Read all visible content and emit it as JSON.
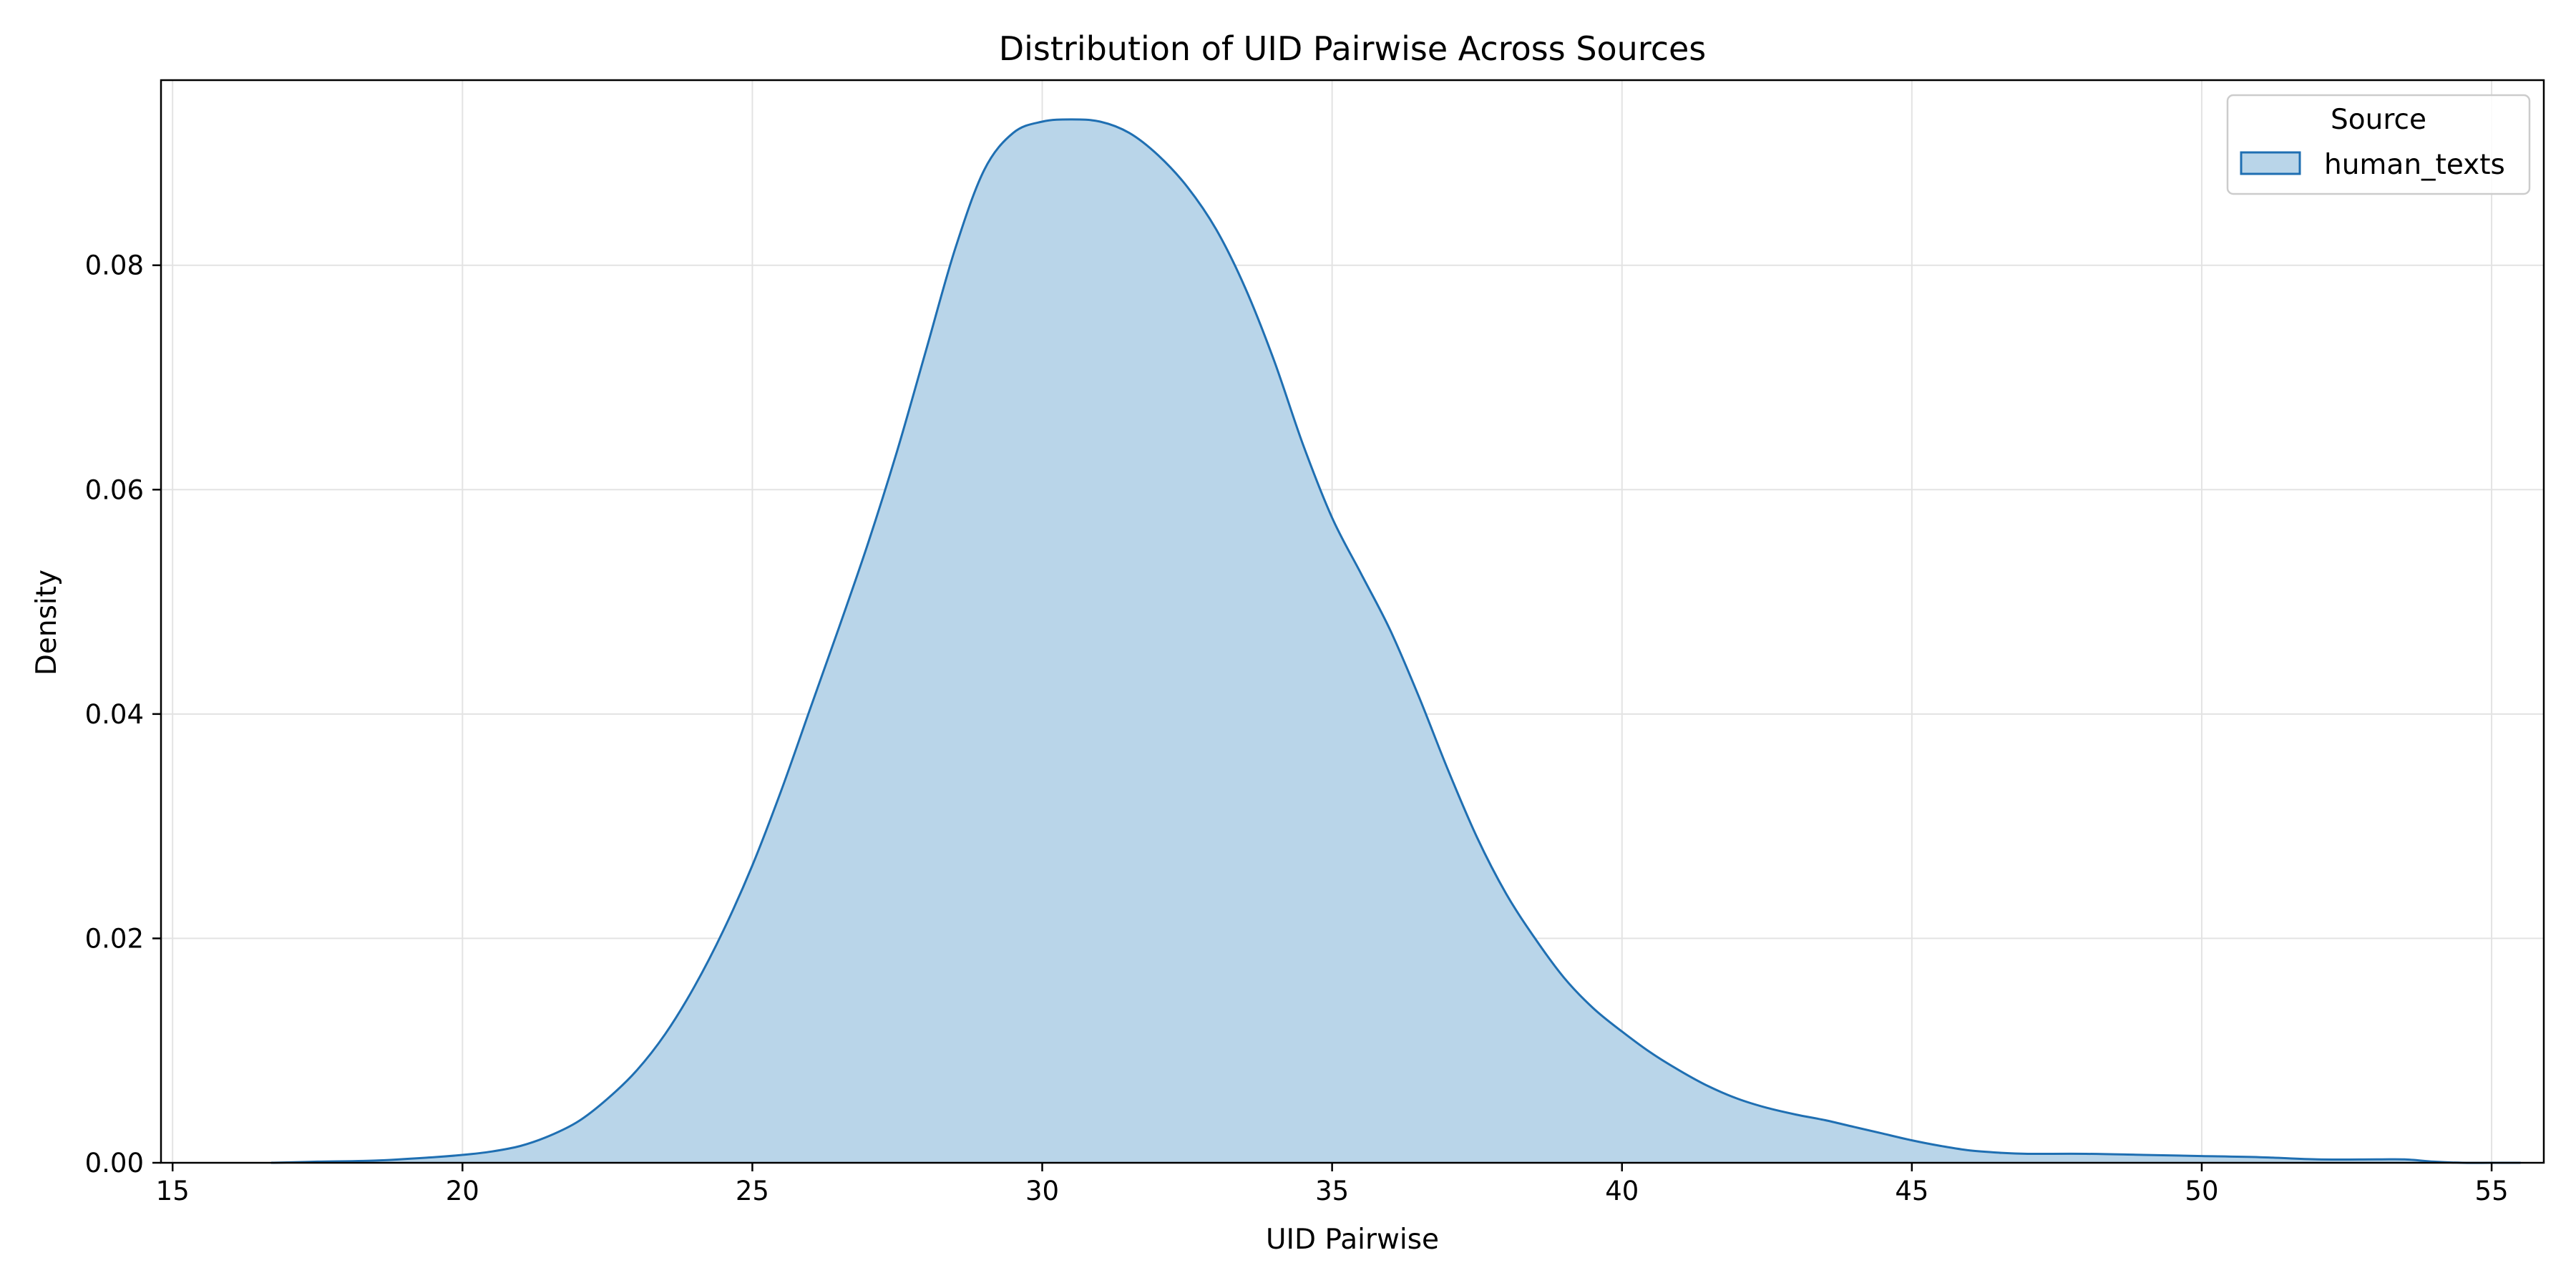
{
  "chart_data": {
    "type": "area",
    "title": "Distribution of UID Pairwise Across Sources",
    "xlabel": "UID Pairwise",
    "ylabel": "Density",
    "xlim": [
      14.8,
      55.9
    ],
    "ylim": [
      0,
      0.0965
    ],
    "x_ticks": [
      "15",
      "20",
      "25",
      "30",
      "35",
      "40",
      "45",
      "50",
      "55"
    ],
    "y_ticks": [
      "0.00",
      "0.02",
      "0.04",
      "0.06",
      "0.08"
    ],
    "grid": true,
    "legend": {
      "title": "Source",
      "position": "top-right",
      "entries": [
        "human_texts"
      ]
    },
    "colors": {
      "fill": "#b9d5e9",
      "line": "#1f6fb2",
      "grid": "#e3e3e3"
    },
    "series": [
      {
        "name": "human_texts",
        "x": [
          16.7,
          17.5,
          18.5,
          19.5,
          20.0,
          20.5,
          21.0,
          21.5,
          22.0,
          22.5,
          23.0,
          23.5,
          24.0,
          24.5,
          25.0,
          25.5,
          26.0,
          26.5,
          27.0,
          27.5,
          28.0,
          28.5,
          29.0,
          29.5,
          30.0,
          30.5,
          31.0,
          31.5,
          32.0,
          32.5,
          33.0,
          33.5,
          34.0,
          34.5,
          35.0,
          35.5,
          36.0,
          36.5,
          37.0,
          37.5,
          38.0,
          38.5,
          39.0,
          39.5,
          40.0,
          40.5,
          41.0,
          41.5,
          42.0,
          42.5,
          43.0,
          43.5,
          44.0,
          44.5,
          45.0,
          45.5,
          46.0,
          46.5,
          47.0,
          48.0,
          49.0,
          50.0,
          51.0,
          52.0,
          53.0,
          53.5,
          54.0,
          54.5,
          55.0,
          55.5
        ],
        "y": [
          0.0,
          0.0001,
          0.0002,
          0.0005,
          0.0007,
          0.001,
          0.0015,
          0.0024,
          0.0037,
          0.0057,
          0.0082,
          0.0115,
          0.0157,
          0.0207,
          0.0265,
          0.0332,
          0.0405,
          0.0478,
          0.0553,
          0.0635,
          0.0725,
          0.0815,
          0.0885,
          0.0918,
          0.0928,
          0.093,
          0.0928,
          0.0918,
          0.0898,
          0.087,
          0.0832,
          0.078,
          0.0715,
          0.064,
          0.0575,
          0.0525,
          0.0475,
          0.0415,
          0.035,
          0.029,
          0.024,
          0.02,
          0.0165,
          0.0138,
          0.0117,
          0.0098,
          0.0082,
          0.0068,
          0.0057,
          0.0049,
          0.0043,
          0.0038,
          0.0032,
          0.0026,
          0.002,
          0.0015,
          0.0011,
          0.0009,
          0.0008,
          0.0008,
          0.0007,
          0.0006,
          0.0005,
          0.0003,
          0.0003,
          0.0003,
          0.0001,
          0.0,
          0.0,
          0.0
        ]
      }
    ]
  }
}
